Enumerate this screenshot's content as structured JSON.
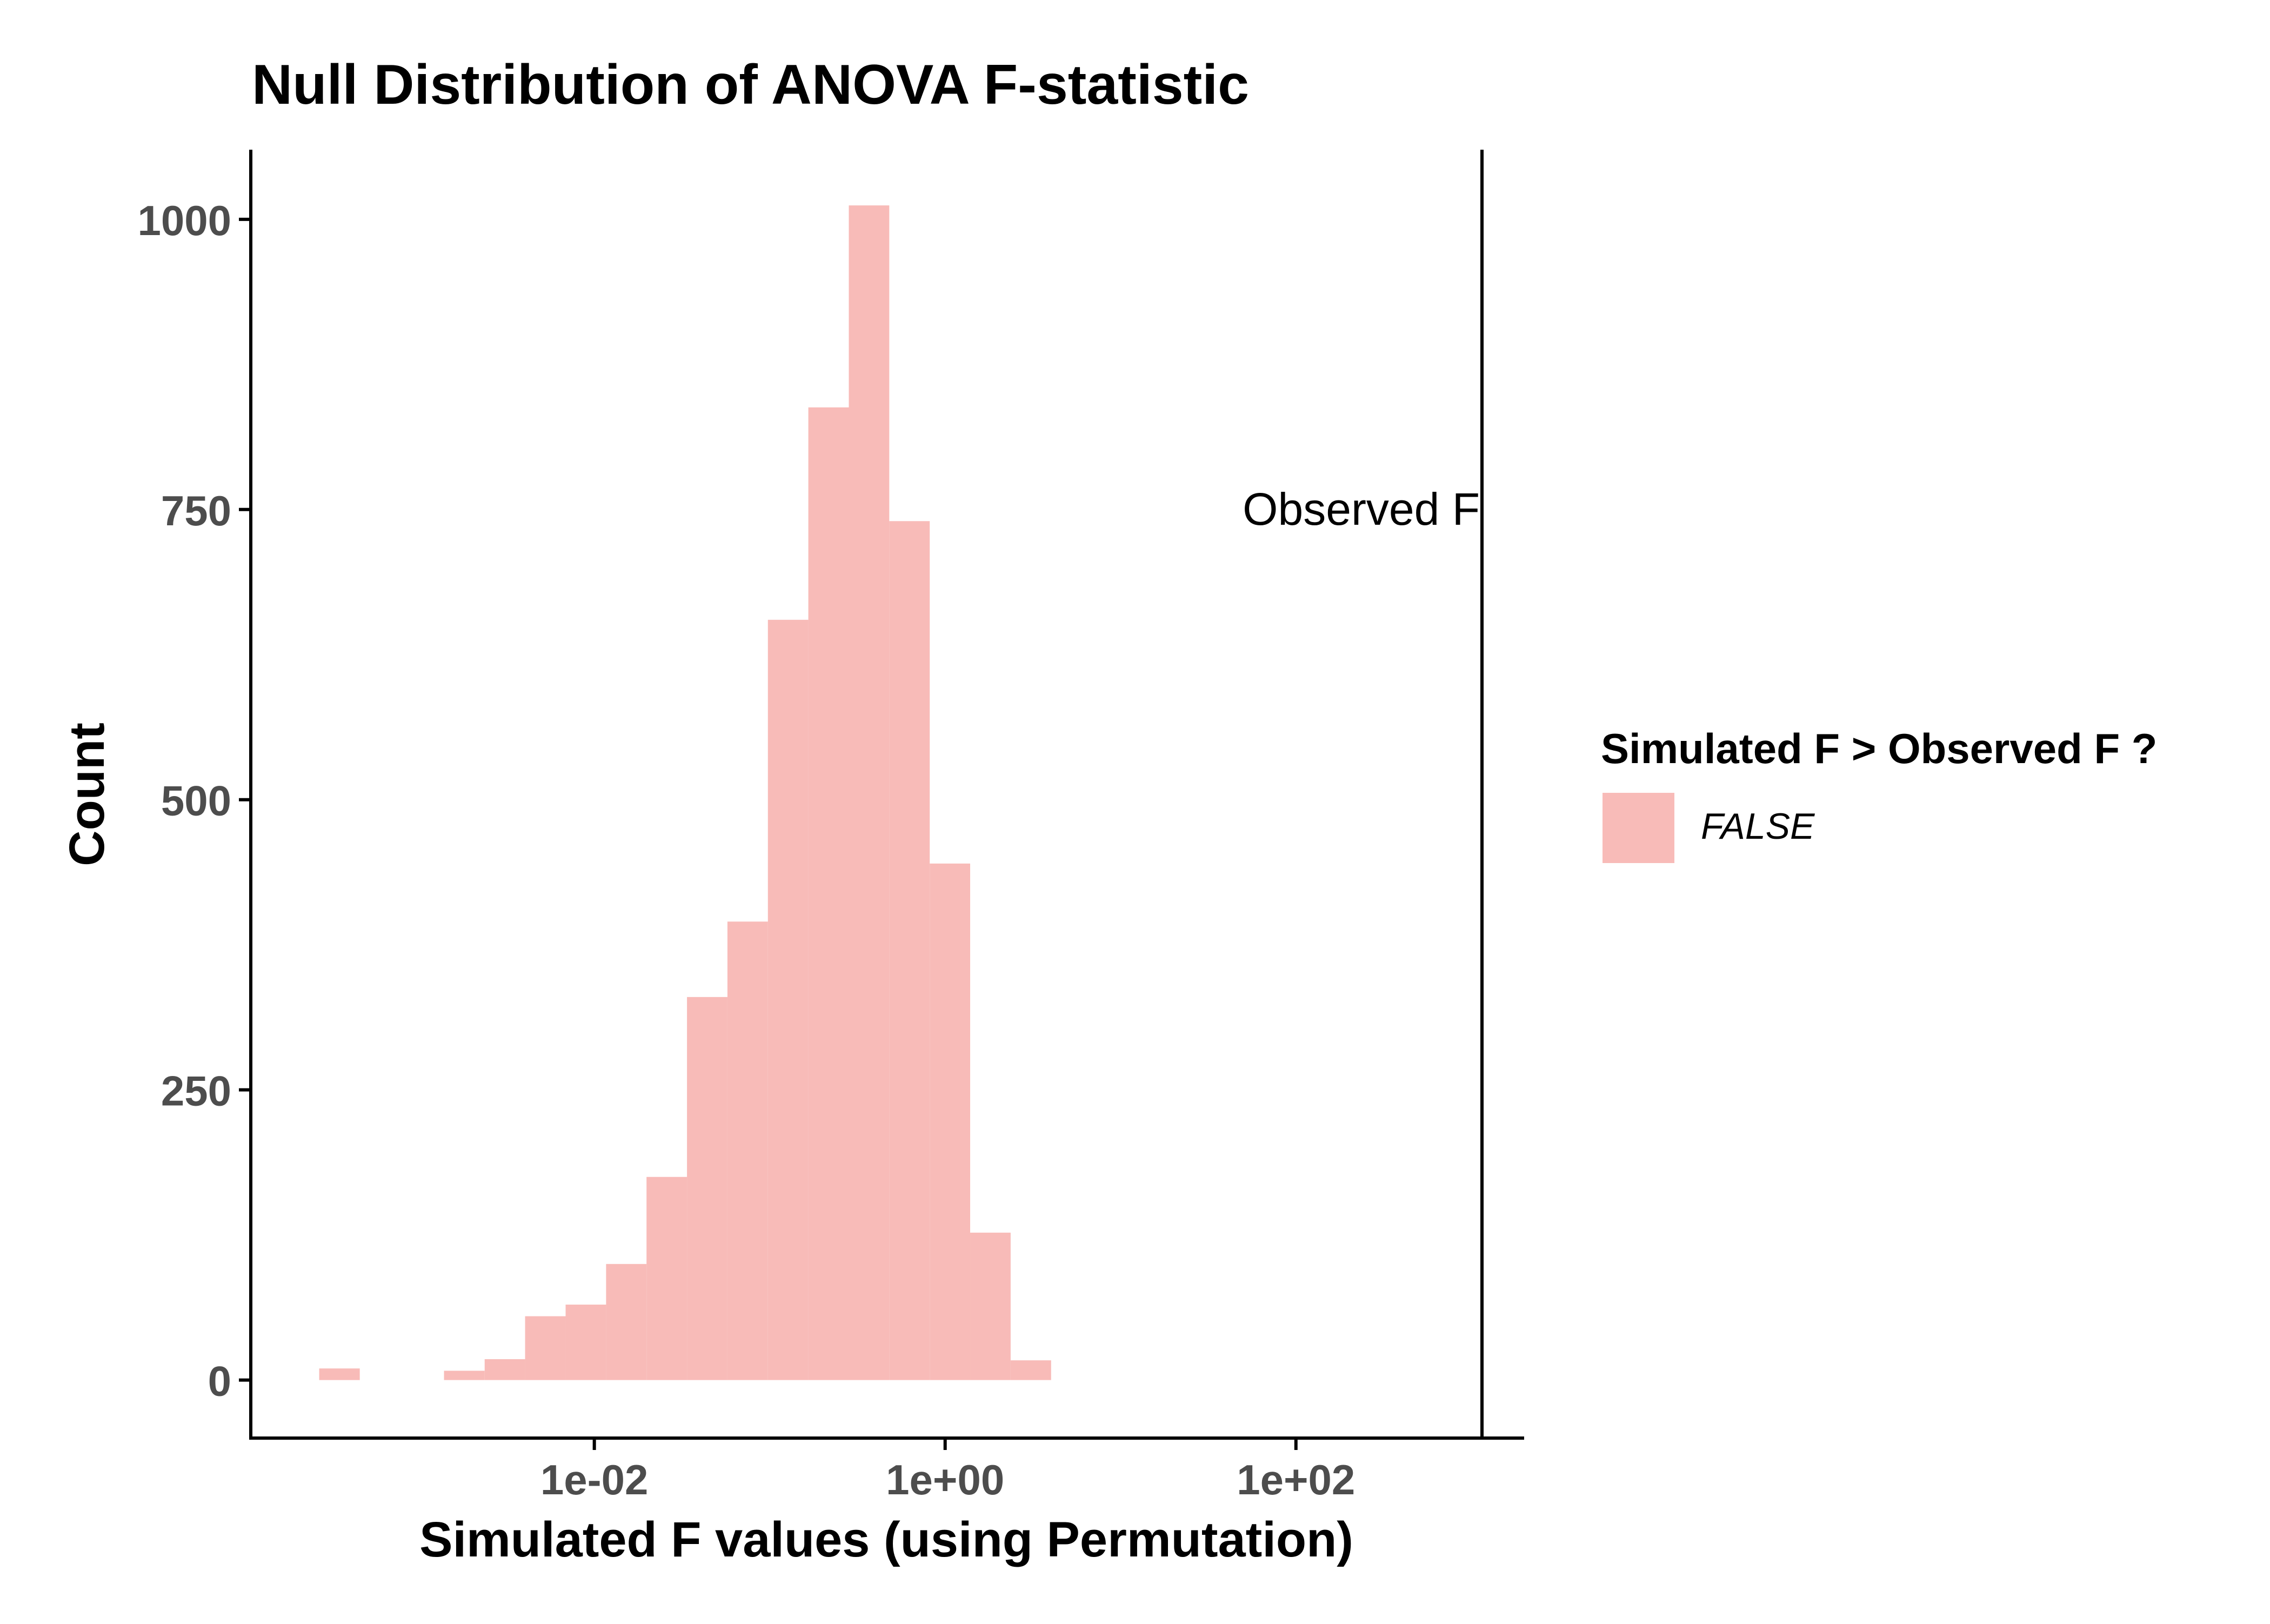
{
  "chart_data": {
    "type": "bar",
    "title": "Null Distribution of ANOVA F-statistic",
    "xlabel": "Simulated F values (using Permutation)",
    "ylabel": "Count",
    "x_scale": "log10",
    "xlim": [
      0.00011,
      2000
    ],
    "ylim": [
      -50,
      1060
    ],
    "x_ticks": [
      {
        "value": 0.01,
        "label": "1e-02"
      },
      {
        "value": 1,
        "label": "1e+00"
      },
      {
        "value": 100,
        "label": "1e+02"
      }
    ],
    "y_ticks": [
      {
        "value": 0,
        "label": "0"
      },
      {
        "value": 250,
        "label": "250"
      },
      {
        "value": 500,
        "label": "500"
      },
      {
        "value": 750,
        "label": "750"
      },
      {
        "value": 1000,
        "label": "1000"
      }
    ],
    "bins": [
      {
        "x0": 0.00027,
        "x1": 0.00046,
        "count": 10
      },
      {
        "x0": 0.00139,
        "x1": 0.00237,
        "count": 8
      },
      {
        "x0": 0.00237,
        "x1": 0.00403,
        "count": 18
      },
      {
        "x0": 0.00403,
        "x1": 0.00686,
        "count": 55
      },
      {
        "x0": 0.00686,
        "x1": 0.01167,
        "count": 65
      },
      {
        "x0": 0.01167,
        "x1": 0.01984,
        "count": 100
      },
      {
        "x0": 0.01984,
        "x1": 0.03375,
        "count": 175
      },
      {
        "x0": 0.03375,
        "x1": 0.0574,
        "count": 330
      },
      {
        "x0": 0.0574,
        "x1": 0.09763,
        "count": 395
      },
      {
        "x0": 0.09763,
        "x1": 0.166,
        "count": 655
      },
      {
        "x0": 0.166,
        "x1": 0.2824,
        "count": 838
      },
      {
        "x0": 0.2824,
        "x1": 0.4803,
        "count": 1012
      },
      {
        "x0": 0.4803,
        "x1": 0.8169,
        "count": 740
      },
      {
        "x0": 0.8169,
        "x1": 1.389,
        "count": 445
      },
      {
        "x0": 1.389,
        "x1": 2.363,
        "count": 127
      },
      {
        "x0": 2.363,
        "x1": 4.019,
        "count": 17
      }
    ],
    "observed_f": 1150,
    "annotation": {
      "text": "Observed F",
      "x": 1150,
      "y": 750
    },
    "legend": {
      "title": "Simulated F > Observed F ?",
      "position": "right",
      "entries": [
        {
          "label": "FALSE",
          "color": "#f8bbb8"
        }
      ]
    },
    "colors": {
      "bar": "#f8bbb8",
      "axis": "#000000",
      "tick_text": "#4d4d4d",
      "text": "#000000"
    },
    "grid": false
  }
}
